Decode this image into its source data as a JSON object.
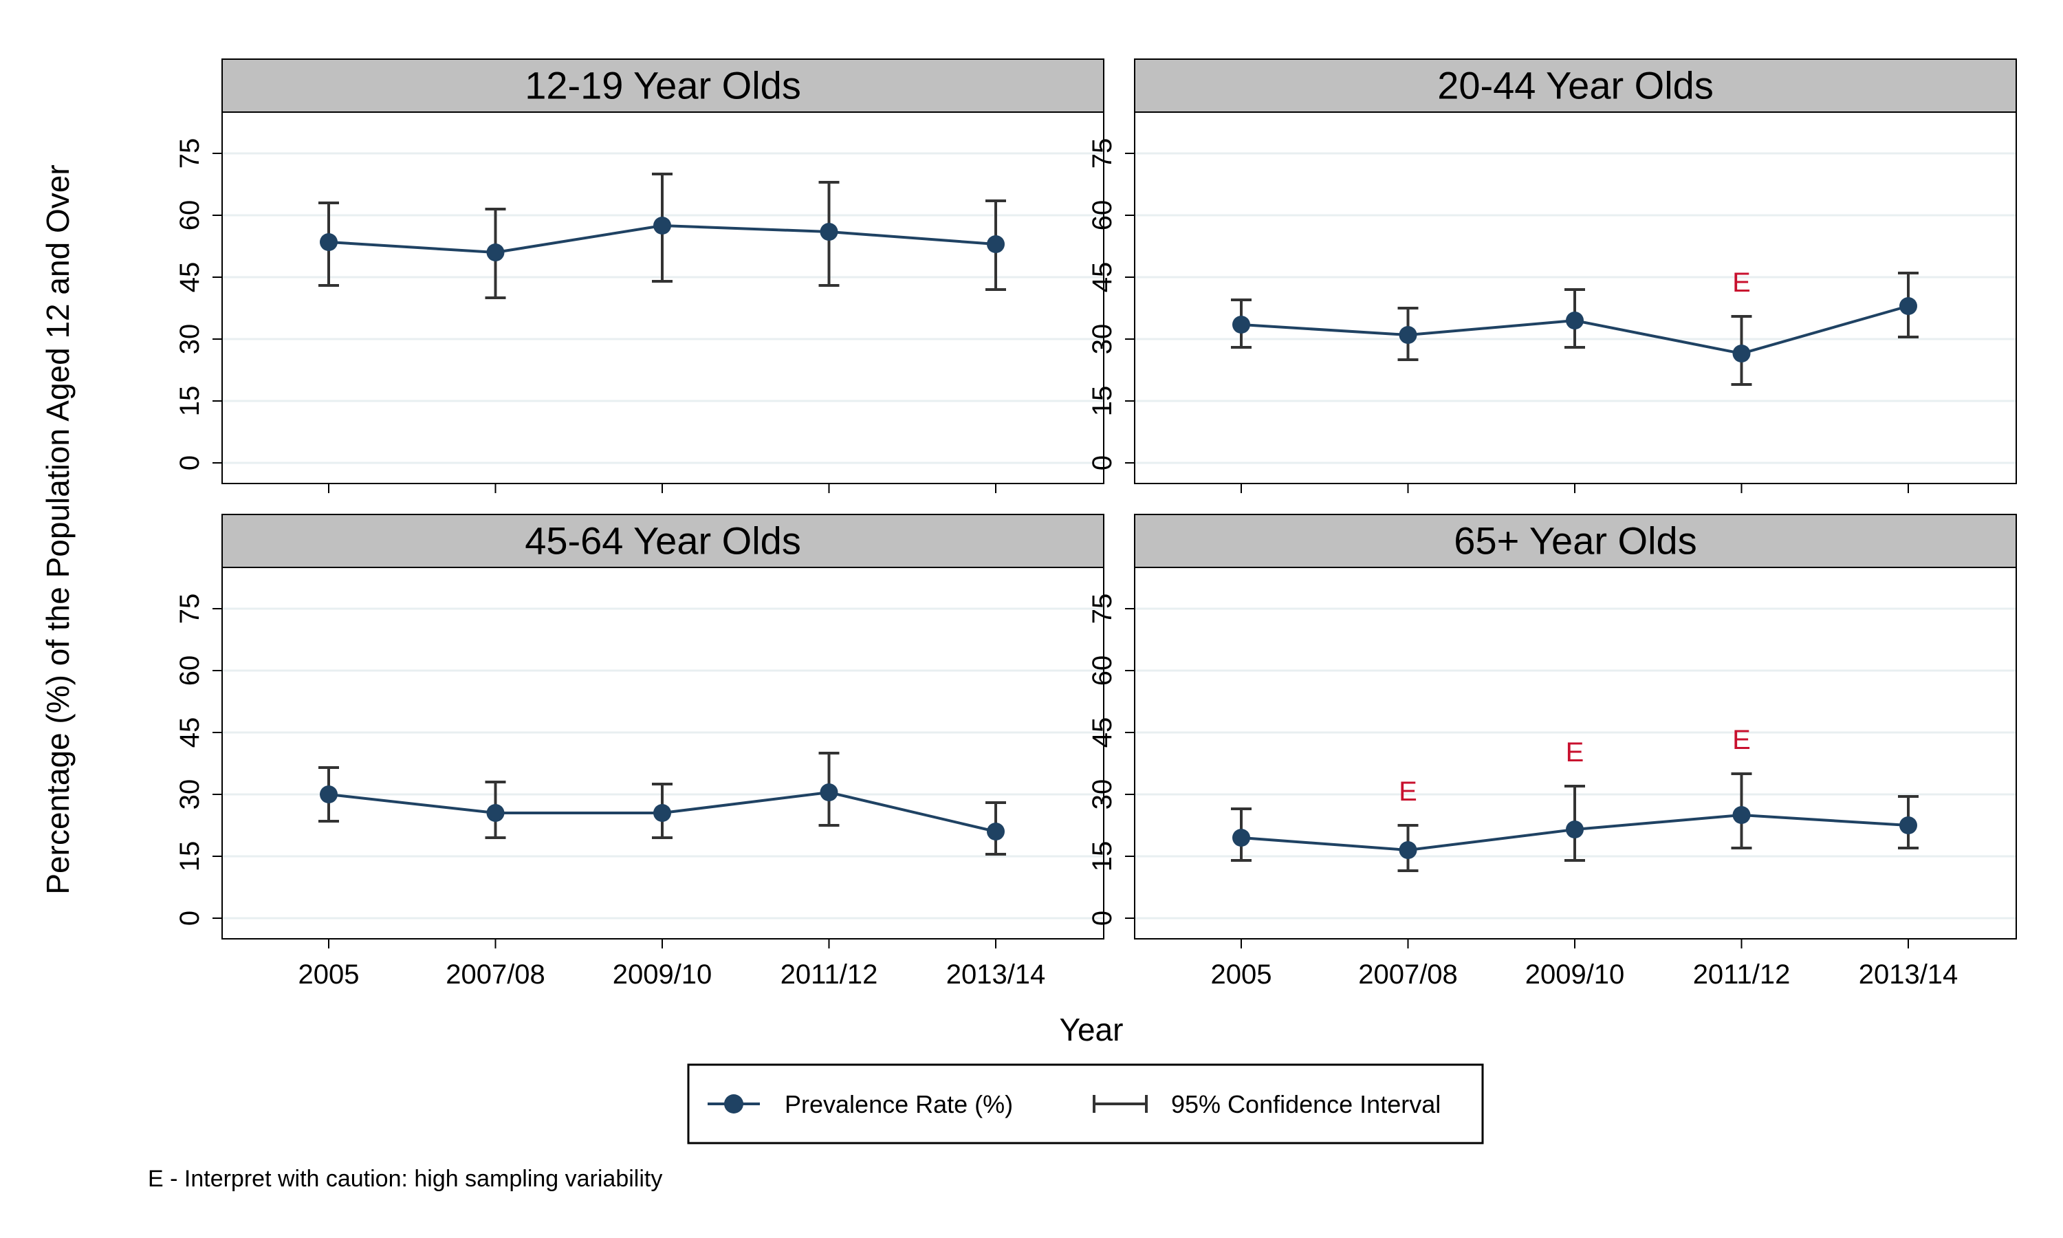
{
  "colors": {
    "series": "#1f4263",
    "ci": "#333333",
    "flag": "#c8102e",
    "strip": "#c0c0c0",
    "grid": "#e8eff1"
  },
  "chart_data": {
    "type": "line",
    "x": [
      "2005",
      "2007/08",
      "2009/10",
      "2011/12",
      "2013/14"
    ],
    "ylabel": "Percentage (%) of the Population Aged 12 and Over",
    "xlabel": "Year",
    "yticks": [
      0,
      15,
      30,
      45,
      60,
      75
    ],
    "ylim": [
      -5,
      85
    ],
    "grid": true,
    "legend": {
      "placement": "bottom",
      "items": [
        {
          "label": "Prevalence Rate (%)",
          "icon": "marker-line-icon"
        },
        {
          "label": "95% Confidence Interval",
          "icon": "error-bar-icon"
        }
      ]
    },
    "note": "E - Interpret with caution: high sampling variability",
    "flag_label": "E",
    "panels": [
      {
        "title": "12-19 Year Olds",
        "values": [
          53.5,
          51,
          57.5,
          56,
          53
        ],
        "ci_low": [
          43,
          40,
          44,
          43,
          42
        ],
        "ci_high": [
          63,
          61.5,
          70,
          68,
          63.5
        ],
        "flags": [
          false,
          false,
          false,
          false,
          false
        ]
      },
      {
        "title": "20-44 Year Olds",
        "values": [
          33.5,
          31,
          34.5,
          26.5,
          38
        ],
        "ci_low": [
          28,
          25,
          28,
          19,
          30.5
        ],
        "ci_high": [
          39.5,
          37.5,
          42,
          35.5,
          46
        ],
        "flags": [
          false,
          false,
          false,
          true,
          false
        ]
      },
      {
        "title": "45-64 Year Olds",
        "values": [
          30,
          25.5,
          25.5,
          30.5,
          21
        ],
        "ci_low": [
          23.5,
          19.5,
          19.5,
          22.5,
          15.5
        ],
        "ci_high": [
          36.5,
          33,
          32.5,
          40,
          28
        ],
        "flags": [
          false,
          false,
          false,
          false,
          false
        ]
      },
      {
        "title": "65+ Year Olds",
        "values": [
          19.5,
          16.5,
          21.5,
          25,
          22.5
        ],
        "ci_low": [
          14,
          11.5,
          14,
          17,
          17
        ],
        "ci_high": [
          26.5,
          22.5,
          32,
          35,
          29.5
        ],
        "flags": [
          false,
          true,
          true,
          true,
          false
        ]
      }
    ]
  }
}
